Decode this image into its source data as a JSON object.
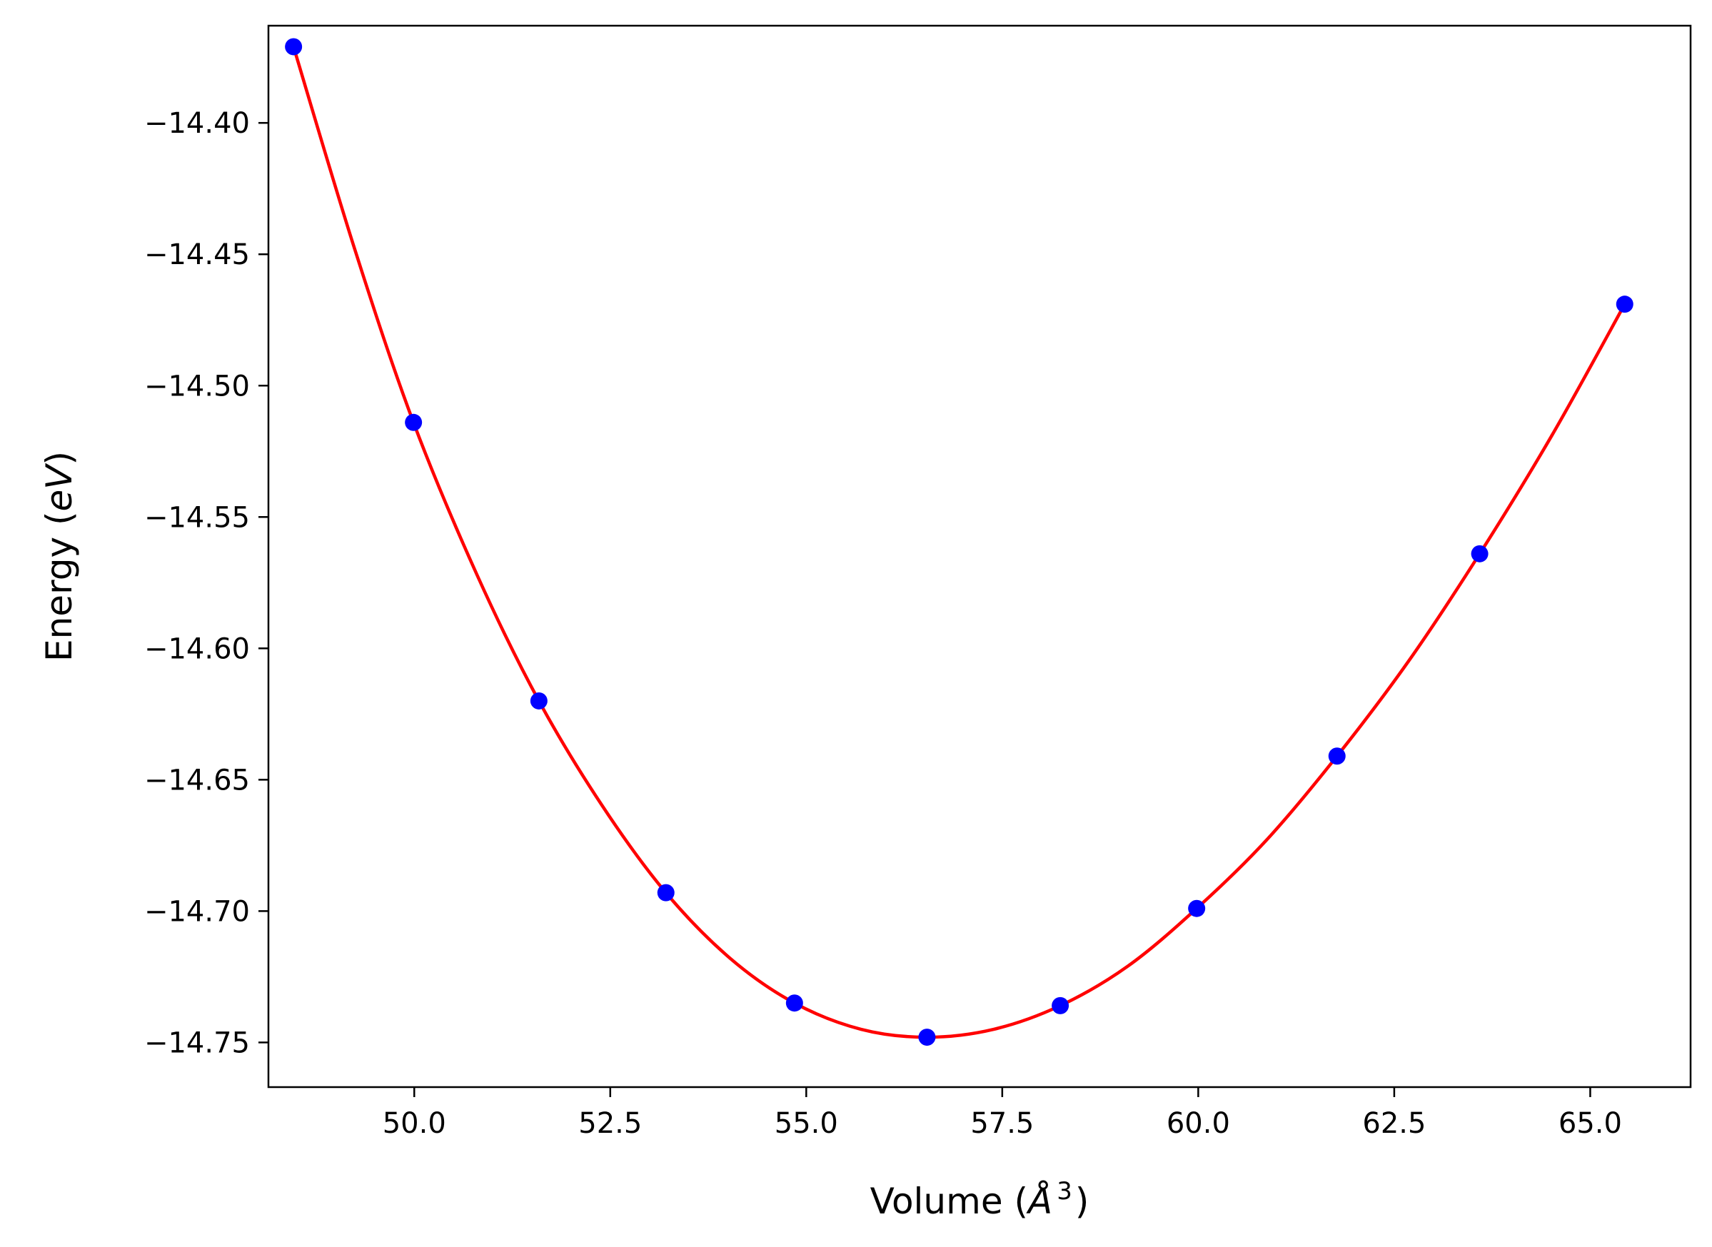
{
  "chart_data": {
    "type": "line",
    "title": "",
    "xlabel": {
      "prefix": "Volume (",
      "symbol": "Å",
      "sup": "3",
      "suffix": ")"
    },
    "ylabel": {
      "prefix": "Energy (",
      "symbol": "eV",
      "suffix": ")"
    },
    "xlim": [
      48.14,
      66.28
    ],
    "ylim": [
      -14.767,
      -14.363
    ],
    "x_ticks": [
      50.0,
      52.5,
      55.0,
      57.5,
      60.0,
      62.5,
      65.0
    ],
    "x_tick_labels": [
      "50.0",
      "52.5",
      "55.0",
      "57.5",
      "60.0",
      "62.5",
      "65.0"
    ],
    "y_ticks": [
      -14.4,
      -14.45,
      -14.5,
      -14.55,
      -14.6,
      -14.65,
      -14.7,
      -14.75
    ],
    "y_tick_labels": [
      "−14.40",
      "−14.45",
      "−14.50",
      "−14.55",
      "−14.60",
      "−14.65",
      "−14.70",
      "−14.75"
    ],
    "grid": false,
    "legend": "none",
    "series": [
      {
        "kind": "scatter",
        "color": "#0000ff",
        "x": [
          48.46,
          49.99,
          51.59,
          53.21,
          54.85,
          56.54,
          58.24,
          59.98,
          61.77,
          63.59,
          65.44
        ],
        "y": [
          -14.371,
          -14.514,
          -14.62,
          -14.693,
          -14.735,
          -14.748,
          -14.736,
          -14.699,
          -14.641,
          -14.564,
          -14.469
        ]
      },
      {
        "kind": "fit-curve",
        "color": "#ff0000",
        "x": [
          48.46,
          49.24,
          49.99,
          50.8,
          51.59,
          52.4,
          53.21,
          54.03,
          54.85,
          55.7,
          56.54,
          57.39,
          58.24,
          59.1,
          59.98,
          60.87,
          61.77,
          62.68,
          63.59,
          64.51,
          65.44
        ],
        "y": [
          -14.371,
          -14.448,
          -14.514,
          -14.572,
          -14.62,
          -14.66,
          -14.693,
          -14.718,
          -14.735,
          -14.745,
          -14.748,
          -14.745,
          -14.736,
          -14.721,
          -14.699,
          -14.673,
          -14.641,
          -14.605,
          -14.564,
          -14.519,
          -14.469
        ]
      }
    ]
  }
}
